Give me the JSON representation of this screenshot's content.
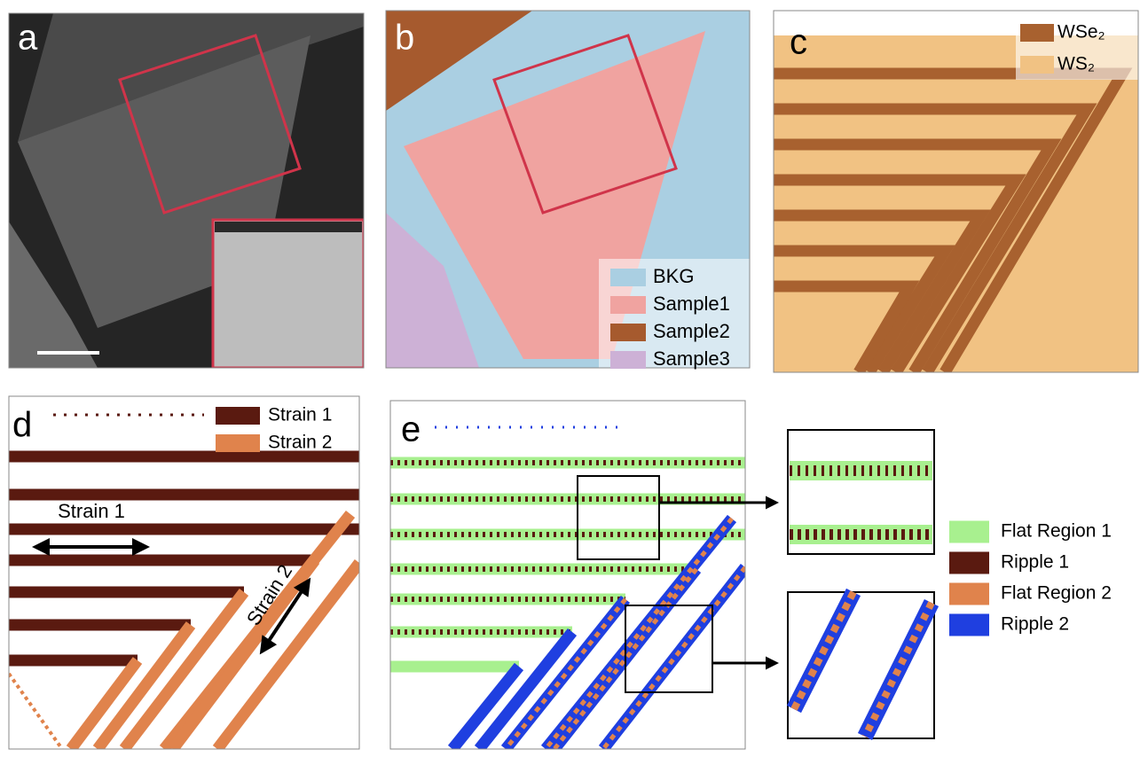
{
  "panels": {
    "a": {
      "label": "a"
    },
    "b": {
      "label": "b",
      "legend": [
        {
          "name": "BKG",
          "color": "#aacfe2"
        },
        {
          "name": "Sample1",
          "color": "#f0a3a0"
        },
        {
          "name": "Sample2",
          "color": "#a65a2e"
        },
        {
          "name": "Sample3",
          "color": "#cdb1d6"
        }
      ]
    },
    "c": {
      "label": "c",
      "legend": [
        {
          "name": "WSe₂",
          "color": "#a8612f"
        },
        {
          "name": "WS₂",
          "color": "#f1c283"
        }
      ]
    },
    "d": {
      "label": "d",
      "legend": [
        {
          "name": "Strain 1",
          "color": "#5a1a10"
        },
        {
          "name": "Strain 2",
          "color": "#e0834c"
        }
      ],
      "annotations": [
        "Strain 1",
        "Strain 2"
      ]
    },
    "e": {
      "label": "e",
      "legend": [
        {
          "name": "Flat Region 1",
          "color": "#a8f08f"
        },
        {
          "name": "Ripple 1",
          "color": "#5a1a10"
        },
        {
          "name": "Flat Region 2",
          "color": "#e0834c"
        },
        {
          "name": "Ripple 2",
          "color": "#1f3fe0"
        }
      ]
    }
  }
}
